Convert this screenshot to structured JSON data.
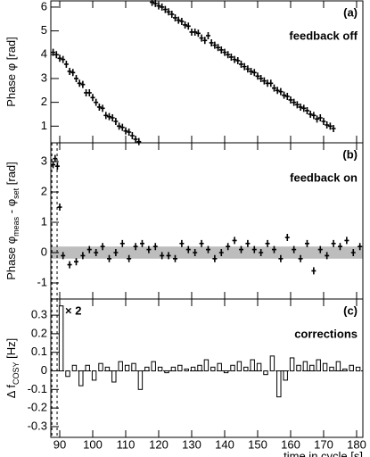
{
  "chart_data": [
    {
      "type": "scatter",
      "panel_label": "(a)",
      "note": "feedback off",
      "ylabel_parts": [
        "Phase φ [rad]"
      ],
      "xlim": [
        87.3,
        181.9
      ],
      "xticks": [
        90,
        100,
        110,
        120,
        130,
        140,
        150,
        160,
        170,
        180
      ],
      "ylim": [
        0.3,
        6.26
      ],
      "yticks": [
        1,
        2,
        3,
        4,
        5,
        6
      ],
      "series": [
        {
          "color": "#000000",
          "x": [
            88,
            89,
            90,
            91,
            92,
            93,
            94,
            95,
            96,
            97,
            98,
            99,
            100,
            101,
            102,
            103,
            104,
            105,
            106,
            107,
            108,
            109,
            110,
            111,
            112,
            113,
            114
          ],
          "values": [
            4.1,
            4.0,
            3.85,
            3.8,
            3.6,
            3.3,
            3.25,
            3.0,
            2.8,
            2.75,
            2.4,
            2.4,
            2.2,
            2.0,
            1.8,
            1.75,
            1.45,
            1.4,
            1.35,
            1.2,
            1.0,
            0.95,
            0.8,
            0.75,
            0.6,
            0.45,
            0.35
          ]
        },
        {
          "color": "#000000",
          "x": [
            118,
            119,
            120,
            121,
            122,
            123,
            124,
            125,
            126,
            127,
            128,
            129,
            130,
            131,
            132,
            133,
            134,
            135,
            136,
            137,
            138,
            139,
            140,
            141,
            142,
            143,
            144,
            145,
            146,
            147,
            148,
            149,
            150,
            151,
            152,
            153,
            154,
            155,
            156,
            157,
            158,
            159,
            160,
            161,
            162,
            163,
            164,
            165,
            166,
            167,
            168,
            169,
            170,
            171,
            172,
            173
          ],
          "values": [
            6.2,
            6.15,
            6.05,
            6.0,
            5.9,
            5.8,
            5.7,
            5.55,
            5.45,
            5.4,
            5.25,
            5.2,
            4.95,
            4.95,
            4.9,
            4.7,
            4.6,
            4.8,
            4.5,
            4.4,
            4.3,
            4.2,
            4.1,
            4.0,
            3.9,
            3.8,
            3.75,
            3.6,
            3.5,
            3.4,
            3.3,
            3.25,
            3.1,
            3.0,
            2.9,
            2.8,
            2.8,
            2.6,
            2.5,
            2.45,
            2.3,
            2.25,
            2.1,
            2.0,
            1.9,
            1.8,
            1.75,
            1.65,
            1.5,
            1.45,
            1.3,
            1.35,
            1.2,
            1.05,
            1.0,
            0.9
          ]
        }
      ]
    },
    {
      "type": "scatter",
      "panel_label": "(b)",
      "note": "feedback on",
      "ylabel_parts": [
        "Phase φ",
        "meas",
        " - φ",
        "set",
        " [rad]"
      ],
      "xlim": [
        87.3,
        181.9
      ],
      "xticks": [
        90,
        100,
        110,
        120,
        130,
        140,
        150,
        160,
        170,
        180
      ],
      "ylim": [
        -1.53,
        3.62
      ],
      "yticks": [
        -1,
        0,
        1,
        2,
        3
      ],
      "band": [
        -0.2,
        0.2
      ],
      "band_color": "#bdbdbd",
      "vlines": [
        87.6,
        89.2
      ],
      "series": [
        {
          "color": "#000000",
          "x": [
            88,
            88.6,
            89.3,
            90,
            91,
            93,
            95,
            97,
            99,
            101,
            103,
            105,
            107,
            109,
            111,
            113,
            115,
            117,
            119,
            121,
            123,
            125,
            127,
            129,
            131,
            133,
            135,
            137,
            139,
            141,
            143,
            145,
            147,
            149,
            151,
            153,
            155,
            157,
            159,
            161,
            163,
            165,
            167,
            169,
            171,
            173,
            175,
            177,
            179,
            181
          ],
          "values": [
            2.9,
            3.1,
            2.85,
            1.5,
            -0.1,
            -0.4,
            -0.3,
            -0.1,
            0.1,
            0,
            0.2,
            -0.2,
            0,
            0.3,
            -0.2,
            0.2,
            0.3,
            0.1,
            0.2,
            -0.1,
            -0.1,
            -0.2,
            0.3,
            0.1,
            0,
            0.3,
            0.1,
            -0.2,
            0,
            0.2,
            0.4,
            0.1,
            0.3,
            0.1,
            0,
            0.3,
            0.1,
            -0.2,
            0.5,
            0.1,
            -0.2,
            0.3,
            -0.6,
            0.1,
            -0.1,
            0.3,
            0.2,
            0.4,
            0,
            0.2
          ]
        }
      ]
    },
    {
      "type": "bar",
      "panel_label": "(c)",
      "note": "corrections",
      "annotation": "× 2",
      "ylabel_parts": [
        "Δ f",
        "COSY",
        " [Hz]"
      ],
      "xlabel": "time in cycle [s]",
      "xlim": [
        87.3,
        181.9
      ],
      "xticks": [
        90,
        100,
        110,
        120,
        130,
        140,
        150,
        160,
        170,
        180
      ],
      "ylim": [
        -0.358,
        0.387
      ],
      "yticks": [
        -0.3,
        -0.2,
        -0.1,
        0,
        0.1,
        0.2,
        0.3
      ],
      "vlines": [
        87.6,
        89.2
      ],
      "hline": 0,
      "series": [
        {
          "color": "#000000",
          "x": [
            90,
            92,
            94,
            96,
            98,
            100,
            102,
            104,
            106,
            108,
            110,
            112,
            114,
            116,
            118,
            120,
            122,
            124,
            126,
            128,
            130,
            132,
            134,
            136,
            138,
            140,
            142,
            144,
            146,
            148,
            150,
            152,
            154,
            156,
            158,
            160,
            162,
            164,
            166,
            168,
            170,
            172,
            174,
            176,
            178,
            180
          ],
          "values": [
            0.35,
            -0.03,
            0.03,
            -0.08,
            0.03,
            -0.05,
            0.04,
            0.02,
            -0.06,
            0.05,
            0.03,
            0.04,
            -0.1,
            0.02,
            0.05,
            0.02,
            -0.01,
            0.02,
            0.03,
            0.01,
            0.02,
            0.03,
            0.06,
            0.02,
            0.04,
            -0.01,
            0.03,
            0.05,
            0.02,
            0.06,
            0.04,
            -0.02,
            0.08,
            -0.14,
            -0.05,
            0.07,
            0.03,
            0.05,
            0.03,
            0.06,
            0.04,
            0.02,
            0.05,
            0.01,
            0.03,
            0.02
          ]
        }
      ]
    }
  ]
}
